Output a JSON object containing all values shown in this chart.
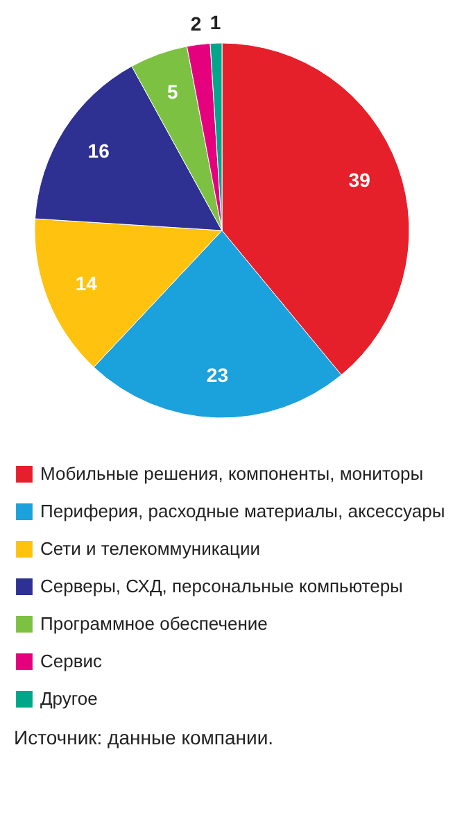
{
  "chart_data": {
    "type": "pie",
    "categories": [
      "Мобильные решения, компоненты, мониторы",
      "Периферия, расходные материалы, аксессуары",
      "Сети и телекоммуникации",
      "Серверы, СХД, персональные компьютеры",
      "Программное обеспечение",
      "Сервис",
      "Другое"
    ],
    "values": [
      39,
      23,
      14,
      16,
      5,
      2,
      1
    ],
    "colors": [
      "#e5202a",
      "#1ba1dc",
      "#ffc20e",
      "#2e3192",
      "#7dc142",
      "#e5007e",
      "#00a68a"
    ],
    "data_labels": true,
    "legend": "bottom",
    "annotations": [
      "Источник: данные компании."
    ]
  }
}
